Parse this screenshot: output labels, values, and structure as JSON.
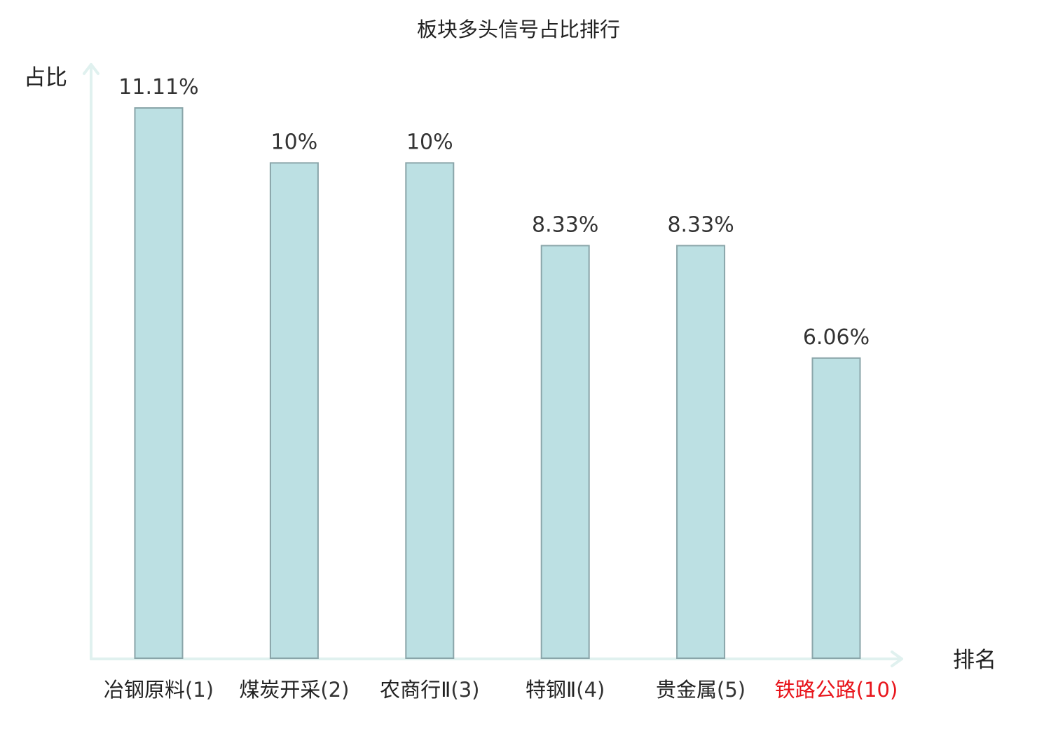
{
  "chart_data": {
    "type": "bar",
    "title": "板块多头信号占比排行",
    "ylabel": "占比",
    "xlabel": "排名",
    "categories": [
      {
        "name": "冶钢原料",
        "rank": "(1)"
      },
      {
        "name": "煤炭开采",
        "rank": "(2)"
      },
      {
        "name": "农商行Ⅱ",
        "rank": "(3)"
      },
      {
        "name": "特钢Ⅱ",
        "rank": "(4)"
      },
      {
        "name": "贵金属",
        "rank": "(5)"
      },
      {
        "name": "铁路公路",
        "rank": "(10)",
        "highlight": true
      }
    ],
    "values": [
      11.11,
      10,
      10,
      8.33,
      8.33,
      6.06
    ],
    "value_labels": [
      "11.11%",
      "10%",
      "10%",
      "8.33%",
      "8.33%",
      "6.06%"
    ],
    "ylim": [
      0,
      11.11
    ],
    "grid": false,
    "legend": "none"
  },
  "colors": {
    "bar_fill": "#bce0e3",
    "bar_stroke": "#8aa5a9",
    "axis": "#e0f1ef",
    "text": "#222222",
    "rank_text": "#333333",
    "highlight": "#e8141b"
  }
}
